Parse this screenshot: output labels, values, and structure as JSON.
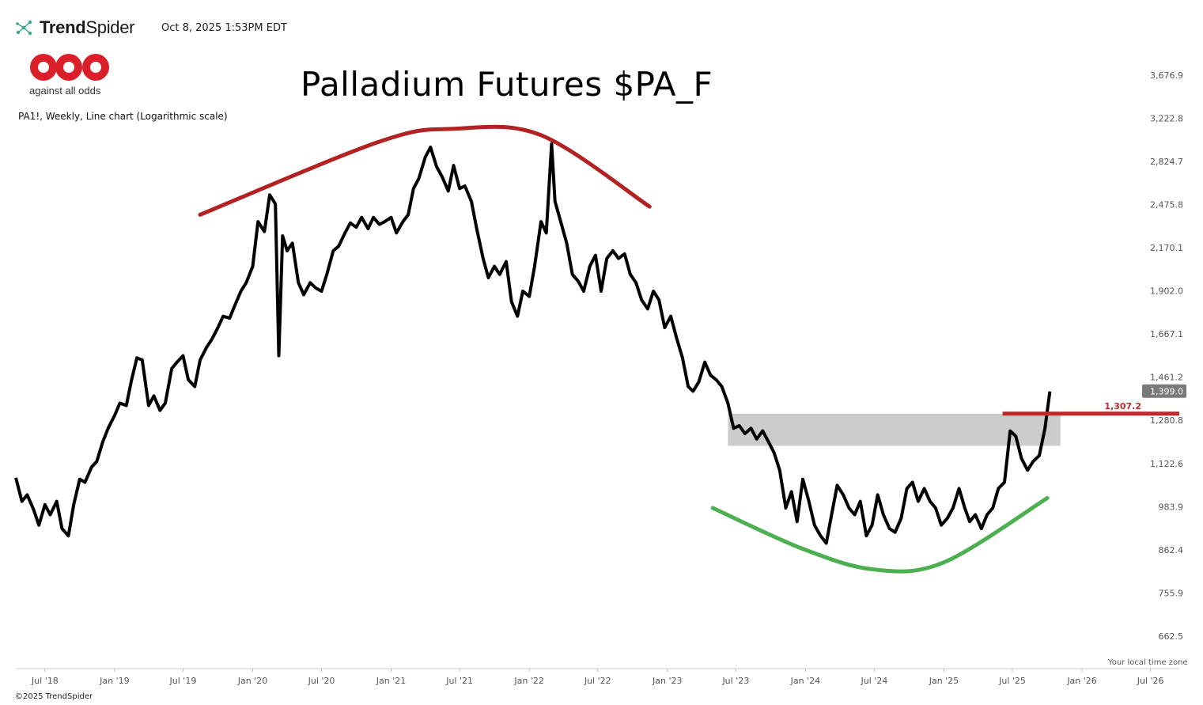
{
  "header": {
    "brand_prefix": "Trend",
    "brand_suffix": "Spider",
    "timestamp": "Oct 8, 2025 1:53PM EDT",
    "brand_icon": "trendspider-network-icon"
  },
  "logo": {
    "tagline": "against all odds",
    "color": "#d9202a"
  },
  "chart_description": "PA1!, Weekly, Line chart (Logarithmic scale)",
  "footer": {
    "copyright": "©2025 TrendSpider",
    "timezone_note": "Your local time zone"
  },
  "chart_data": {
    "type": "line",
    "title": "Palladium Futures $PA_F",
    "log_scale": true,
    "grid": false,
    "ylim": [
      600,
      4000
    ],
    "xlim": [
      "2018-04-15",
      "2026-09-15"
    ],
    "y_ticks": [
      "3,676.9",
      "3,222.8",
      "2,824.7",
      "2,475.8",
      "2,170.1",
      "1,902.0",
      "1,667.1",
      "1,461.2",
      "1,280.8",
      "1,122.6",
      "983.9",
      "862.4",
      "755.9",
      "662.5"
    ],
    "y_tick_values": [
      3676.9,
      3222.8,
      2824.7,
      2475.8,
      2170.1,
      1902.0,
      1667.1,
      1461.2,
      1280.8,
      1122.6,
      983.9,
      862.4,
      755.9,
      662.5
    ],
    "x_ticks": [
      "Jul '18",
      "Jan '19",
      "Jul '19",
      "Jan '20",
      "Jul '20",
      "Jan '21",
      "Jul '21",
      "Jan '22",
      "Jul '22",
      "Jan '23",
      "Jul '23",
      "Jan '24",
      "Jul '24",
      "Jan '25",
      "Jul '25",
      "Jan '26",
      "Jul '26"
    ],
    "x_tick_dates": [
      "2018-07-01",
      "2019-01-01",
      "2019-07-01",
      "2020-01-01",
      "2020-07-01",
      "2021-01-01",
      "2021-07-01",
      "2022-01-01",
      "2022-07-01",
      "2023-01-01",
      "2023-07-01",
      "2024-01-01",
      "2024-07-01",
      "2025-01-01",
      "2025-07-01",
      "2026-01-01",
      "2026-07-01"
    ],
    "last_price": "1,399.0",
    "last_price_bg": "#7a7a7a",
    "series": [
      {
        "color": "#000000",
        "points": [
          [
            "2018-04-15",
            1075
          ],
          [
            "2018-05-01",
            1000
          ],
          [
            "2018-05-15",
            1020
          ],
          [
            "2018-06-01",
            975
          ],
          [
            "2018-06-15",
            930
          ],
          [
            "2018-07-01",
            990
          ],
          [
            "2018-07-15",
            960
          ],
          [
            "2018-08-01",
            1000
          ],
          [
            "2018-08-15",
            920
          ],
          [
            "2018-09-01",
            900
          ],
          [
            "2018-09-15",
            990
          ],
          [
            "2018-10-01",
            1070
          ],
          [
            "2018-10-15",
            1060
          ],
          [
            "2018-11-01",
            1110
          ],
          [
            "2018-11-15",
            1130
          ],
          [
            "2018-12-01",
            1200
          ],
          [
            "2018-12-15",
            1250
          ],
          [
            "2019-01-01",
            1300
          ],
          [
            "2019-01-15",
            1350
          ],
          [
            "2019-02-01",
            1340
          ],
          [
            "2019-02-15",
            1450
          ],
          [
            "2019-03-01",
            1550
          ],
          [
            "2019-03-15",
            1540
          ],
          [
            "2019-04-01",
            1340
          ],
          [
            "2019-04-15",
            1380
          ],
          [
            "2019-05-01",
            1320
          ],
          [
            "2019-05-15",
            1350
          ],
          [
            "2019-06-01",
            1500
          ],
          [
            "2019-06-15",
            1530
          ],
          [
            "2019-07-01",
            1560
          ],
          [
            "2019-07-15",
            1450
          ],
          [
            "2019-08-01",
            1420
          ],
          [
            "2019-08-15",
            1540
          ],
          [
            "2019-09-01",
            1600
          ],
          [
            "2019-09-15",
            1640
          ],
          [
            "2019-10-01",
            1700
          ],
          [
            "2019-10-15",
            1760
          ],
          [
            "2019-11-01",
            1750
          ],
          [
            "2019-11-15",
            1820
          ],
          [
            "2019-12-01",
            1900
          ],
          [
            "2019-12-15",
            1950
          ],
          [
            "2020-01-01",
            2050
          ],
          [
            "2020-01-15",
            2350
          ],
          [
            "2020-02-01",
            2280
          ],
          [
            "2020-02-15",
            2550
          ],
          [
            "2020-03-01",
            2480
          ],
          [
            "2020-03-10",
            1560
          ],
          [
            "2020-03-20",
            2250
          ],
          [
            "2020-04-01",
            2150
          ],
          [
            "2020-04-15",
            2200
          ],
          [
            "2020-05-01",
            1950
          ],
          [
            "2020-05-15",
            1880
          ],
          [
            "2020-06-01",
            1950
          ],
          [
            "2020-06-15",
            1920
          ],
          [
            "2020-07-01",
            1900
          ],
          [
            "2020-07-15",
            2000
          ],
          [
            "2020-08-01",
            2150
          ],
          [
            "2020-08-15",
            2180
          ],
          [
            "2020-09-01",
            2270
          ],
          [
            "2020-09-15",
            2340
          ],
          [
            "2020-10-01",
            2310
          ],
          [
            "2020-10-15",
            2380
          ],
          [
            "2020-11-01",
            2300
          ],
          [
            "2020-11-15",
            2380
          ],
          [
            "2020-12-01",
            2330
          ],
          [
            "2020-12-15",
            2350
          ],
          [
            "2021-01-01",
            2380
          ],
          [
            "2021-01-15",
            2270
          ],
          [
            "2021-02-01",
            2350
          ],
          [
            "2021-02-15",
            2400
          ],
          [
            "2021-03-01",
            2600
          ],
          [
            "2021-03-15",
            2680
          ],
          [
            "2021-04-01",
            2860
          ],
          [
            "2021-04-15",
            2950
          ],
          [
            "2021-05-01",
            2780
          ],
          [
            "2021-05-15",
            2700
          ],
          [
            "2021-06-01",
            2580
          ],
          [
            "2021-06-15",
            2790
          ],
          [
            "2021-07-01",
            2600
          ],
          [
            "2021-07-15",
            2620
          ],
          [
            "2021-08-01",
            2500
          ],
          [
            "2021-08-15",
            2300
          ],
          [
            "2021-09-01",
            2100
          ],
          [
            "2021-09-15",
            1980
          ],
          [
            "2021-10-01",
            2050
          ],
          [
            "2021-10-15",
            2000
          ],
          [
            "2021-11-01",
            2080
          ],
          [
            "2021-11-15",
            1840
          ],
          [
            "2021-12-01",
            1760
          ],
          [
            "2021-12-15",
            1900
          ],
          [
            "2022-01-01",
            1870
          ],
          [
            "2022-01-15",
            2050
          ],
          [
            "2022-02-01",
            2350
          ],
          [
            "2022-02-15",
            2270
          ],
          [
            "2022-03-01",
            2980
          ],
          [
            "2022-03-10",
            2500
          ],
          [
            "2022-03-25",
            2350
          ],
          [
            "2022-04-10",
            2200
          ],
          [
            "2022-04-25",
            2000
          ],
          [
            "2022-05-10",
            1960
          ],
          [
            "2022-05-25",
            1900
          ],
          [
            "2022-06-10",
            2050
          ],
          [
            "2022-06-25",
            2120
          ],
          [
            "2022-07-10",
            1900
          ],
          [
            "2022-07-25",
            2100
          ],
          [
            "2022-08-10",
            2150
          ],
          [
            "2022-08-25",
            2100
          ],
          [
            "2022-09-10",
            2130
          ],
          [
            "2022-09-25",
            2000
          ],
          [
            "2022-10-10",
            1950
          ],
          [
            "2022-10-25",
            1850
          ],
          [
            "2022-11-10",
            1800
          ],
          [
            "2022-11-25",
            1900
          ],
          [
            "2022-12-10",
            1850
          ],
          [
            "2022-12-25",
            1700
          ],
          [
            "2023-01-10",
            1760
          ],
          [
            "2023-01-25",
            1650
          ],
          [
            "2023-02-10",
            1550
          ],
          [
            "2023-02-25",
            1420
          ],
          [
            "2023-03-10",
            1400
          ],
          [
            "2023-03-25",
            1440
          ],
          [
            "2023-04-10",
            1530
          ],
          [
            "2023-04-25",
            1470
          ],
          [
            "2023-05-10",
            1450
          ],
          [
            "2023-05-25",
            1420
          ],
          [
            "2023-06-10",
            1350
          ],
          [
            "2023-06-25",
            1250
          ],
          [
            "2023-07-10",
            1260
          ],
          [
            "2023-07-25",
            1230
          ],
          [
            "2023-08-10",
            1250
          ],
          [
            "2023-08-25",
            1210
          ],
          [
            "2023-09-10",
            1240
          ],
          [
            "2023-09-25",
            1200
          ],
          [
            "2023-10-10",
            1160
          ],
          [
            "2023-10-25",
            1100
          ],
          [
            "2023-11-10",
            980
          ],
          [
            "2023-11-25",
            1030
          ],
          [
            "2023-12-10",
            940
          ],
          [
            "2023-12-25",
            1070
          ],
          [
            "2024-01-10",
            1000
          ],
          [
            "2024-01-25",
            930
          ],
          [
            "2024-02-10",
            900
          ],
          [
            "2024-02-25",
            880
          ],
          [
            "2024-03-10",
            960
          ],
          [
            "2024-03-25",
            1050
          ],
          [
            "2024-04-10",
            1020
          ],
          [
            "2024-04-25",
            980
          ],
          [
            "2024-05-10",
            960
          ],
          [
            "2024-05-25",
            1000
          ],
          [
            "2024-06-10",
            900
          ],
          [
            "2024-06-25",
            930
          ],
          [
            "2024-07-10",
            1020
          ],
          [
            "2024-07-25",
            960
          ],
          [
            "2024-08-10",
            920
          ],
          [
            "2024-08-25",
            910
          ],
          [
            "2024-09-10",
            950
          ],
          [
            "2024-09-25",
            1040
          ],
          [
            "2024-10-10",
            1060
          ],
          [
            "2024-10-25",
            1000
          ],
          [
            "2024-11-10",
            1040
          ],
          [
            "2024-11-25",
            1000
          ],
          [
            "2024-12-10",
            980
          ],
          [
            "2024-12-25",
            930
          ],
          [
            "2025-01-10",
            950
          ],
          [
            "2025-01-25",
            980
          ],
          [
            "2025-02-10",
            1040
          ],
          [
            "2025-02-25",
            980
          ],
          [
            "2025-03-10",
            940
          ],
          [
            "2025-03-25",
            960
          ],
          [
            "2025-04-10",
            920
          ],
          [
            "2025-04-25",
            960
          ],
          [
            "2025-05-10",
            980
          ],
          [
            "2025-05-25",
            1040
          ],
          [
            "2025-06-10",
            1060
          ],
          [
            "2025-06-25",
            1240
          ],
          [
            "2025-07-10",
            1220
          ],
          [
            "2025-07-25",
            1140
          ],
          [
            "2025-08-10",
            1100
          ],
          [
            "2025-08-25",
            1130
          ],
          [
            "2025-09-10",
            1150
          ],
          [
            "2025-09-25",
            1250
          ],
          [
            "2025-10-08",
            1399
          ]
        ]
      }
    ],
    "annotations": {
      "resistance_label": "1,307.2",
      "resistance_value": 1307.2,
      "resistance_color": "#c0292b",
      "resistance_range": [
        "2025-06-05",
        "2026-09-15"
      ],
      "zone_color": "#cccccc",
      "zone_range_y": [
        1185,
        1307.2
      ],
      "zone_range_x": [
        "2023-06-10",
        "2025-11-05"
      ],
      "top_arc_color": "#b22222",
      "top_arc": [
        [
          "2019-08-15",
          2400
        ],
        [
          "2020-12-01",
          3000
        ],
        [
          "2021-06-15",
          3120
        ],
        [
          "2022-02-01",
          3060
        ],
        [
          "2022-11-15",
          2460
        ]
      ],
      "bottom_arc_color": "#4caf50",
      "bottom_arc": [
        [
          "2023-05-01",
          980
        ],
        [
          "2023-12-25",
          865
        ],
        [
          "2024-07-01",
          812
        ],
        [
          "2025-01-01",
          830
        ],
        [
          "2025-10-01",
          1010
        ]
      ]
    }
  }
}
